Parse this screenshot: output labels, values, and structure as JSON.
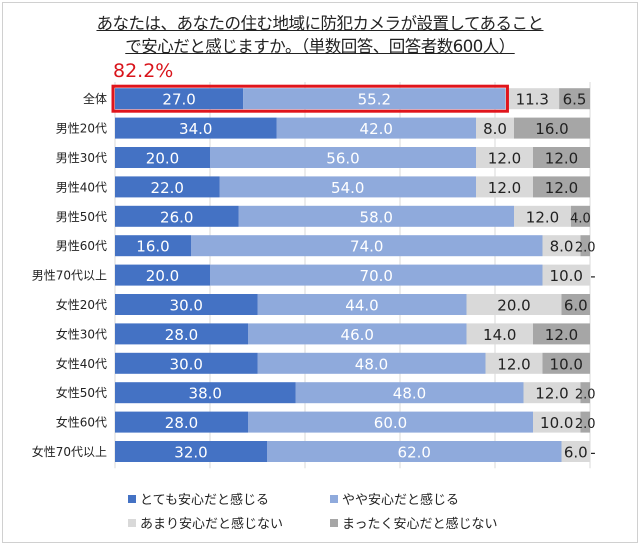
{
  "chart_data": {
    "type": "bar",
    "orientation": "horizontal",
    "stacked": true,
    "title_lines": [
      "あなたは、あなたの住む地域に防犯カメラが設置してあること",
      "で安心だと感じますか。（単数回答、回答者数600人）"
    ],
    "annotation": "82.2%",
    "xlim": [
      0,
      100
    ],
    "grid": true,
    "legend_position": "bottom",
    "categories": [
      "全体",
      "男性20代",
      "男性30代",
      "男性40代",
      "男性50代",
      "男性60代",
      "男性70代以上",
      "女性20代",
      "女性30代",
      "女性40代",
      "女性50代",
      "女性60代",
      "女性70代以上"
    ],
    "series": [
      {
        "name": "とても安心だと感じる",
        "color": "#4472c4",
        "label_color": "#ffffff",
        "values": [
          27.0,
          34.0,
          20.0,
          22.0,
          26.0,
          16.0,
          20.0,
          30.0,
          28.0,
          30.0,
          38.0,
          28.0,
          32.0
        ]
      },
      {
        "name": "やや安心だと感じる",
        "color": "#8faadc",
        "label_color": "#ffffff",
        "values": [
          55.2,
          42.0,
          56.0,
          54.0,
          58.0,
          74.0,
          70.0,
          44.0,
          46.0,
          48.0,
          48.0,
          60.0,
          62.0
        ]
      },
      {
        "name": "あまり安心だと感じない",
        "color": "#d9d9d9",
        "label_color": "#222222",
        "values": [
          11.3,
          8.0,
          12.0,
          12.0,
          12.0,
          8.0,
          10.0,
          20.0,
          14.0,
          12.0,
          12.0,
          10.0,
          6.0
        ]
      },
      {
        "name": "まったく安心だと感じない",
        "color": "#a6a6a6",
        "label_color": "#222222",
        "values": [
          6.5,
          16.0,
          12.0,
          12.0,
          4.0,
          2.0,
          0,
          6.0,
          12.0,
          10.0,
          2.0,
          2.0,
          0
        ]
      }
    ],
    "zero_label": "-",
    "highlight_color": "#e0151c"
  }
}
